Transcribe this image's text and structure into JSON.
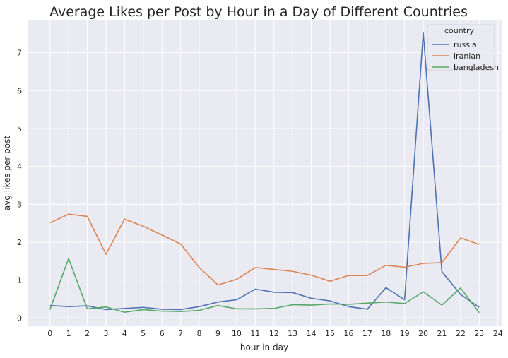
{
  "chart_data": {
    "type": "line",
    "title": "Average Likes per Post by Hour in a Day of Different Countries",
    "xlabel": "hour in day",
    "ylabel": "avg likes per post",
    "xlim": [
      -1.2,
      24.2
    ],
    "ylim": [
      -0.2,
      7.85
    ],
    "x_ticks": [
      0,
      1,
      2,
      3,
      4,
      5,
      6,
      7,
      8,
      9,
      10,
      11,
      12,
      13,
      14,
      15,
      16,
      17,
      18,
      19,
      20,
      21,
      22,
      23,
      24
    ],
    "y_ticks": [
      0,
      1,
      2,
      3,
      4,
      5,
      6,
      7
    ],
    "grid": true,
    "background": "#eaeaf2",
    "legend": {
      "title": "country",
      "position": "top-right"
    },
    "x": [
      0,
      1,
      2,
      3,
      4,
      5,
      6,
      7,
      8,
      9,
      10,
      11,
      12,
      13,
      14,
      15,
      16,
      17,
      18,
      19,
      20,
      21,
      22,
      23
    ],
    "series": [
      {
        "name": "russia",
        "color": "#4c72b0",
        "values": [
          0.33,
          0.3,
          0.32,
          0.22,
          0.25,
          0.28,
          0.23,
          0.22,
          0.3,
          0.42,
          0.48,
          0.76,
          0.68,
          0.67,
          0.52,
          0.45,
          0.3,
          0.23,
          0.8,
          0.48,
          7.52,
          1.22,
          0.62,
          0.28
        ]
      },
      {
        "name": "iranian",
        "color": "#dd8452",
        "values": [
          2.51,
          2.74,
          2.68,
          1.68,
          2.61,
          2.42,
          2.19,
          1.95,
          1.33,
          0.87,
          1.02,
          1.33,
          1.28,
          1.23,
          1.13,
          0.97,
          1.12,
          1.12,
          1.39,
          1.34,
          1.44,
          1.46,
          2.11,
          1.94
        ]
      },
      {
        "name": "bangladesh",
        "color": "#55a868",
        "values": [
          0.22,
          1.57,
          0.24,
          0.29,
          0.15,
          0.22,
          0.18,
          0.17,
          0.2,
          0.33,
          0.24,
          0.24,
          0.25,
          0.35,
          0.34,
          0.37,
          0.36,
          0.39,
          0.42,
          0.38,
          0.69,
          0.34,
          0.79,
          0.14
        ]
      }
    ]
  }
}
